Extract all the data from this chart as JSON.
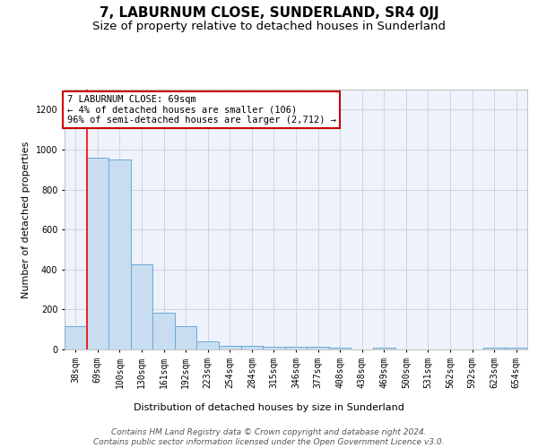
{
  "title": "7, LABURNUM CLOSE, SUNDERLAND, SR4 0JJ",
  "subtitle": "Size of property relative to detached houses in Sunderland",
  "xlabel": "Distribution of detached houses by size in Sunderland",
  "ylabel": "Number of detached properties",
  "categories": [
    "38sqm",
    "69sqm",
    "100sqm",
    "130sqm",
    "161sqm",
    "192sqm",
    "223sqm",
    "254sqm",
    "284sqm",
    "315sqm",
    "346sqm",
    "377sqm",
    "408sqm",
    "438sqm",
    "469sqm",
    "500sqm",
    "531sqm",
    "562sqm",
    "592sqm",
    "623sqm",
    "654sqm"
  ],
  "values": [
    115,
    960,
    950,
    425,
    185,
    115,
    42,
    18,
    16,
    12,
    14,
    14,
    10,
    0,
    10,
    0,
    0,
    0,
    0,
    10,
    10
  ],
  "bar_color": "#c9ddf0",
  "bar_edge_color": "#6aaad4",
  "red_line_index": 1,
  "ylim": [
    0,
    1300
  ],
  "yticks": [
    0,
    200,
    400,
    600,
    800,
    1000,
    1200
  ],
  "annotation_line1": "7 LABURNUM CLOSE: 69sqm",
  "annotation_line2": "← 4% of detached houses are smaller (106)",
  "annotation_line3": "96% of semi-detached houses are larger (2,712) →",
  "annotation_box_color": "#ffffff",
  "annotation_box_edge": "#cc0000",
  "footer_line1": "Contains HM Land Registry data © Crown copyright and database right 2024.",
  "footer_line2": "Contains public sector information licensed under the Open Government Licence v3.0.",
  "bg_color": "#eef2fb",
  "grid_color": "#c8cfe0",
  "title_fontsize": 11,
  "subtitle_fontsize": 9.5,
  "axis_label_fontsize": 8,
  "tick_fontsize": 7,
  "annotation_fontsize": 7.5,
  "footer_fontsize": 6.5
}
